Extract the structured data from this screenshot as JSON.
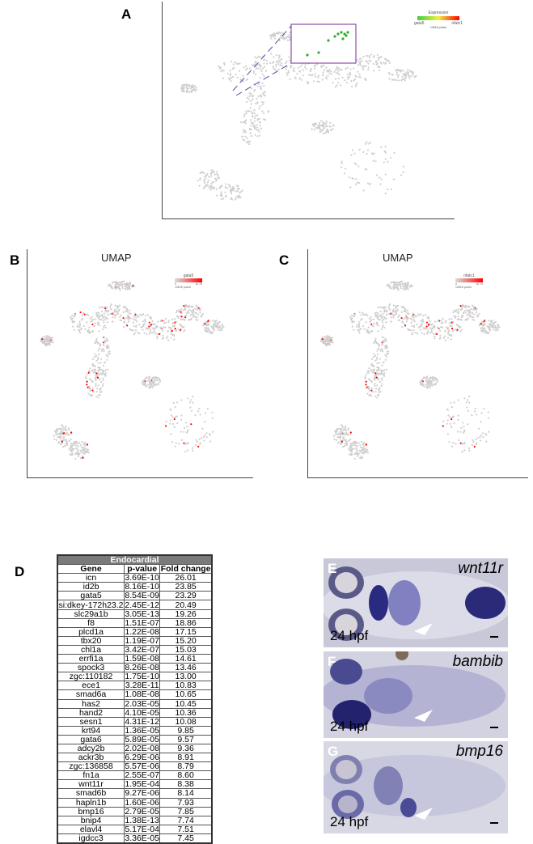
{
  "panels": {
    "A": {
      "label": "A",
      "legend": {
        "title": "Expression",
        "low": "gata5",
        "high": "nfatc1",
        "points": "10818 points"
      }
    },
    "B": {
      "label": "B",
      "title": "UMAP",
      "legend": {
        "title": "gata5",
        "min": "0",
        "max": "10.78",
        "points": "10818 points"
      },
      "color": "#ff0000"
    },
    "C": {
      "label": "C",
      "title": "UMAP",
      "legend": {
        "title": "nfatc1",
        "min": "0",
        "max": "10.74",
        "points": "10818 points"
      },
      "color": "#ff0000"
    },
    "D": {
      "label": "D"
    },
    "E": {
      "label": "E",
      "gene": "wnt11r",
      "stage": "24 hpf"
    },
    "F": {
      "label": "F",
      "gene": "bambib",
      "stage": "24 hpf"
    },
    "G": {
      "label": "G",
      "gene": "bmp16",
      "stage": "24 hpf"
    }
  },
  "table": {
    "title": "Endocardial",
    "columns": [
      "Gene",
      "p-value",
      "Fold change"
    ],
    "rows": [
      [
        "icn",
        "3.69E-10",
        "26.01"
      ],
      [
        "id2b",
        "8.16E-10",
        "23.85"
      ],
      [
        "gata5",
        "8.54E-09",
        "23.29"
      ],
      [
        "si:dkey-172h23.2",
        "2.45E-12",
        "20.49"
      ],
      [
        "slc29a1b",
        "3.05E-13",
        "19.26"
      ],
      [
        "f8",
        "1.51E-07",
        "18.86"
      ],
      [
        "plcd1a",
        "1.22E-08",
        "17.15"
      ],
      [
        "tbx20",
        "1.19E-07",
        "15.20"
      ],
      [
        "chl1a",
        "3.42E-07",
        "15.03"
      ],
      [
        "errfi1a",
        "1.59E-08",
        "14.61"
      ],
      [
        "spock3",
        "8.26E-08",
        "13.46"
      ],
      [
        "zgc:110182",
        "1.75E-10",
        "13.00"
      ],
      [
        "ece1",
        "3.28E-11",
        "10.83"
      ],
      [
        "smad6a",
        "1.08E-08",
        "10.65"
      ],
      [
        "has2",
        "2.03E-05",
        "10.45"
      ],
      [
        "hand2",
        "4.10E-05",
        "10.36"
      ],
      [
        "sesn1",
        "4.31E-12",
        "10.08"
      ],
      [
        "krt94",
        "1.36E-05",
        "9.85"
      ],
      [
        "gata6",
        "5.89E-05",
        "9.57"
      ],
      [
        "adcy2b",
        "2.02E-08",
        "9.36"
      ],
      [
        "ackr3b",
        "6.29E-06",
        "8.91"
      ],
      [
        "zgc:136858",
        "5.57E-06",
        "8.79"
      ],
      [
        "fn1a",
        "2.55E-07",
        "8.60"
      ],
      [
        "wnt11r",
        "1.95E-04",
        "8.38"
      ],
      [
        "smad6b",
        "9.27E-06",
        "8.14"
      ],
      [
        "hapln1b",
        "1.60E-06",
        "7.93"
      ],
      [
        "bmp16",
        "2.79E-05",
        "7.85"
      ],
      [
        "bnip4",
        "1.38E-13",
        "7.74"
      ],
      [
        "elavl4",
        "5.17E-04",
        "7.51"
      ],
      [
        "igdcc3",
        "3.36E-05",
        "7.45"
      ]
    ]
  }
}
